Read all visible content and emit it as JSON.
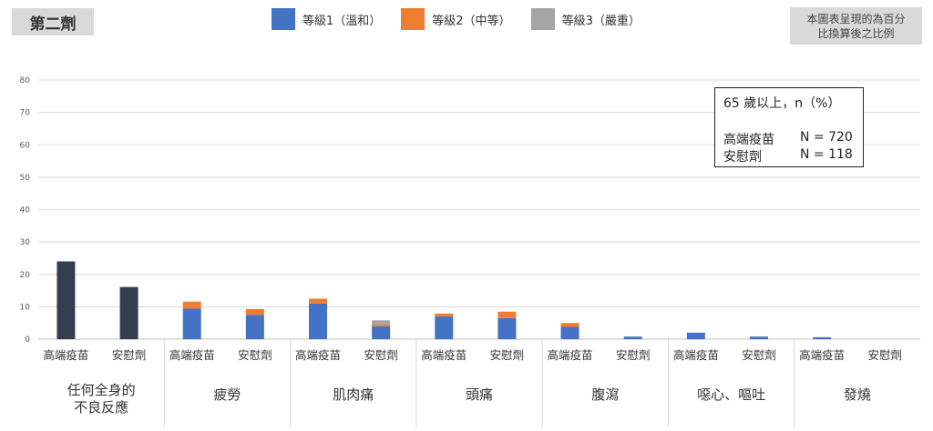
{
  "dose_label": "第二劑",
  "note_lines": [
    "本圖表呈現的為百分",
    "比換算後之比例"
  ],
  "info_box": {
    "title": "65 歲以上，n（%）",
    "rows": [
      {
        "group": "高端疫苗",
        "n": "N = 720"
      },
      {
        "group": "安慰劑",
        "n": "N = 118"
      }
    ]
  },
  "colors": {
    "grade1": "#4472c4",
    "grade2": "#ed7d31",
    "grade3": "#a5a5a5",
    "any": "#333f50"
  },
  "chart_data": {
    "type": "bar",
    "stacked": true,
    "ylim": [
      0,
      80
    ],
    "yticks": [
      0,
      10,
      20,
      30,
      40,
      50,
      60,
      70,
      80
    ],
    "grid": true,
    "legend_position": "top",
    "series": [
      {
        "name": "等級1（溫和）",
        "color": "#4472c4"
      },
      {
        "name": "等級2（中等）",
        "color": "#ed7d31"
      },
      {
        "name": "等級3（嚴重）",
        "color": "#a5a5a5"
      }
    ],
    "groups": [
      {
        "label": [
          "任何全身的",
          "不良反應"
        ],
        "bars": [
          {
            "label": "高端疫苗",
            "total": 24.0
          },
          {
            "label": "安慰劑",
            "total": 16.1
          }
        ]
      },
      {
        "label": [
          "疲勞"
        ],
        "bars": [
          {
            "label": "高端疫苗",
            "values": [
              9.4,
              2.2,
              0
            ]
          },
          {
            "label": "安慰劑",
            "values": [
              7.5,
              1.8,
              0
            ]
          }
        ]
      },
      {
        "label": [
          "肌肉痛"
        ],
        "bars": [
          {
            "label": "高端疫苗",
            "values": [
              11.0,
              1.5,
              0
            ]
          },
          {
            "label": "安慰劑",
            "values": [
              4.0,
              0.5,
              1.3
            ]
          }
        ]
      },
      {
        "label": [
          "頭痛"
        ],
        "bars": [
          {
            "label": "高端疫苗",
            "values": [
              7.0,
              0.9,
              0
            ]
          },
          {
            "label": "安慰劑",
            "values": [
              6.5,
              2.0,
              0
            ]
          }
        ]
      },
      {
        "label": [
          "腹瀉"
        ],
        "bars": [
          {
            "label": "高端疫苗",
            "values": [
              3.8,
              1.2,
              0
            ]
          },
          {
            "label": "安慰劑",
            "values": [
              0.8,
              0,
              0
            ]
          }
        ]
      },
      {
        "label": [
          "噁心、嘔吐"
        ],
        "bars": [
          {
            "label": "高端疫苗",
            "values": [
              2.0,
              0,
              0
            ]
          },
          {
            "label": "安慰劑",
            "values": [
              0.8,
              0,
              0
            ]
          }
        ]
      },
      {
        "label": [
          "發燒"
        ],
        "bars": [
          {
            "label": "高端疫苗",
            "values": [
              0.6,
              0,
              0
            ]
          },
          {
            "label": "安慰劑",
            "values": [
              0,
              0,
              0
            ]
          }
        ]
      }
    ]
  }
}
